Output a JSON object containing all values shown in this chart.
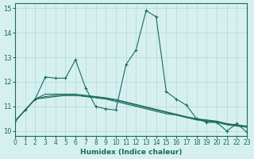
{
  "xlabel": "Humidex (Indice chaleur)",
  "bg_color": "#d6f0f0",
  "grid_color": "#b0d8d8",
  "line_color": "#1a6b5a",
  "xlim": [
    0,
    23
  ],
  "ylim": [
    9.8,
    15.2
  ],
  "xticks": [
    0,
    1,
    2,
    3,
    4,
    5,
    6,
    7,
    8,
    9,
    10,
    11,
    12,
    13,
    14,
    15,
    16,
    17,
    18,
    19,
    20,
    21,
    22,
    23
  ],
  "yticks": [
    10,
    11,
    12,
    13,
    14,
    15
  ],
  "line1_x": [
    0,
    1,
    2,
    3,
    4,
    5,
    6,
    7,
    8,
    9,
    10,
    11,
    12,
    13,
    14,
    15,
    16,
    17,
    18,
    19,
    20,
    21,
    22,
    23
  ],
  "line1_y": [
    10.4,
    10.85,
    11.3,
    12.2,
    12.15,
    12.15,
    12.9,
    11.75,
    11.0,
    10.9,
    10.85,
    12.7,
    13.3,
    14.9,
    14.65,
    11.6,
    11.3,
    11.05,
    10.5,
    10.35,
    10.35,
    10.0,
    10.3,
    9.95
  ],
  "line2_x": [
    0,
    1,
    2,
    3,
    4,
    5,
    6,
    7,
    8,
    9,
    10,
    11,
    12,
    13,
    14,
    15,
    16,
    17,
    18,
    19,
    20,
    21,
    22,
    23
  ],
  "line2_y": [
    10.4,
    10.85,
    11.3,
    11.35,
    11.4,
    11.45,
    11.45,
    11.4,
    11.35,
    11.3,
    11.2,
    11.1,
    11.0,
    10.9,
    10.8,
    10.7,
    10.65,
    10.55,
    10.45,
    10.4,
    10.35,
    10.25,
    10.2,
    10.15
  ],
  "line3_x": [
    0,
    1,
    2,
    3,
    4,
    5,
    6,
    7,
    8,
    9,
    10,
    11,
    12,
    13,
    14,
    15,
    16,
    17,
    18,
    19,
    20,
    21,
    22,
    23
  ],
  "line3_y": [
    10.4,
    10.85,
    11.3,
    11.4,
    11.45,
    11.45,
    11.45,
    11.42,
    11.38,
    11.32,
    11.25,
    11.15,
    11.05,
    10.95,
    10.85,
    10.75,
    10.65,
    10.55,
    10.48,
    10.42,
    10.38,
    10.28,
    10.22,
    10.17
  ],
  "line4_x": [
    0,
    1,
    2,
    3,
    4,
    5,
    6,
    7,
    8,
    9,
    10,
    11,
    12,
    13,
    14,
    15,
    16,
    17,
    18,
    19,
    20,
    21,
    22,
    23
  ],
  "line4_y": [
    10.4,
    10.85,
    11.3,
    11.5,
    11.5,
    11.5,
    11.5,
    11.45,
    11.4,
    11.35,
    11.28,
    11.18,
    11.08,
    10.98,
    10.88,
    10.78,
    10.68,
    10.58,
    10.5,
    10.45,
    10.4,
    10.3,
    10.25,
    10.2
  ]
}
